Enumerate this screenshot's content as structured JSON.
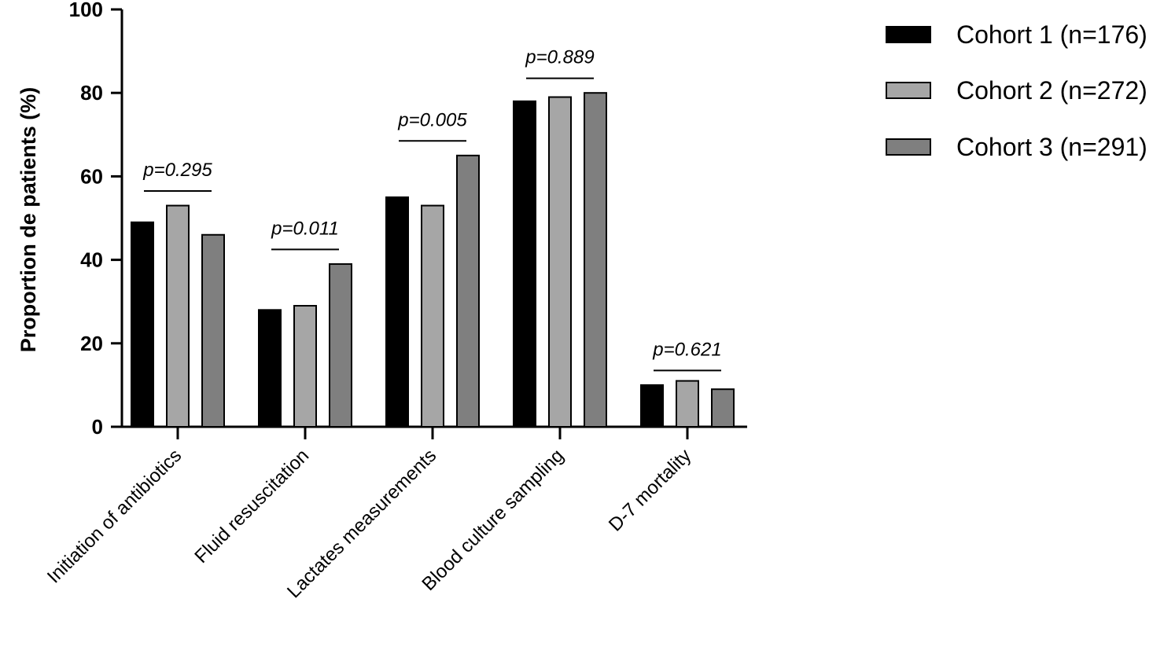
{
  "chart_data": {
    "type": "bar",
    "title": "",
    "xlabel": "",
    "ylabel": "Proportion de patients (%)",
    "ylim": [
      0,
      100
    ],
    "yticks": [
      0,
      20,
      40,
      60,
      80,
      100
    ],
    "categories": [
      "Initiation of antibiotics",
      "Fluid resuscitation",
      "Lactates measurements",
      "Blood culture sampling",
      "D-7 mortality"
    ],
    "series": [
      {
        "name": "Cohort 1 (n=176)",
        "color": "#000000",
        "values": [
          49,
          28,
          55,
          78,
          10
        ]
      },
      {
        "name": "Cohort 2 (n=272)",
        "color": "#a6a6a6",
        "values": [
          53,
          29,
          53,
          79,
          11
        ]
      },
      {
        "name": "Cohort 3 (n=291)",
        "color": "#7f7f7f",
        "values": [
          46,
          39,
          65,
          80,
          9
        ]
      }
    ],
    "annotations": [
      {
        "category": "Initiation of antibiotics",
        "text": "p=0.295",
        "level": 56.5
      },
      {
        "category": "Fluid resuscitation",
        "text": "p=0.011",
        "level": 42.5
      },
      {
        "category": "Lactates measurements",
        "text": "p=0.005",
        "level": 68.5
      },
      {
        "category": "Blood culture sampling",
        "text": "p=0.889",
        "level": 83.5
      },
      {
        "category": "D-7 mortality",
        "text": "p=0.621",
        "level": 13.5
      }
    ],
    "legend_position": "top-right",
    "grid": false
  }
}
